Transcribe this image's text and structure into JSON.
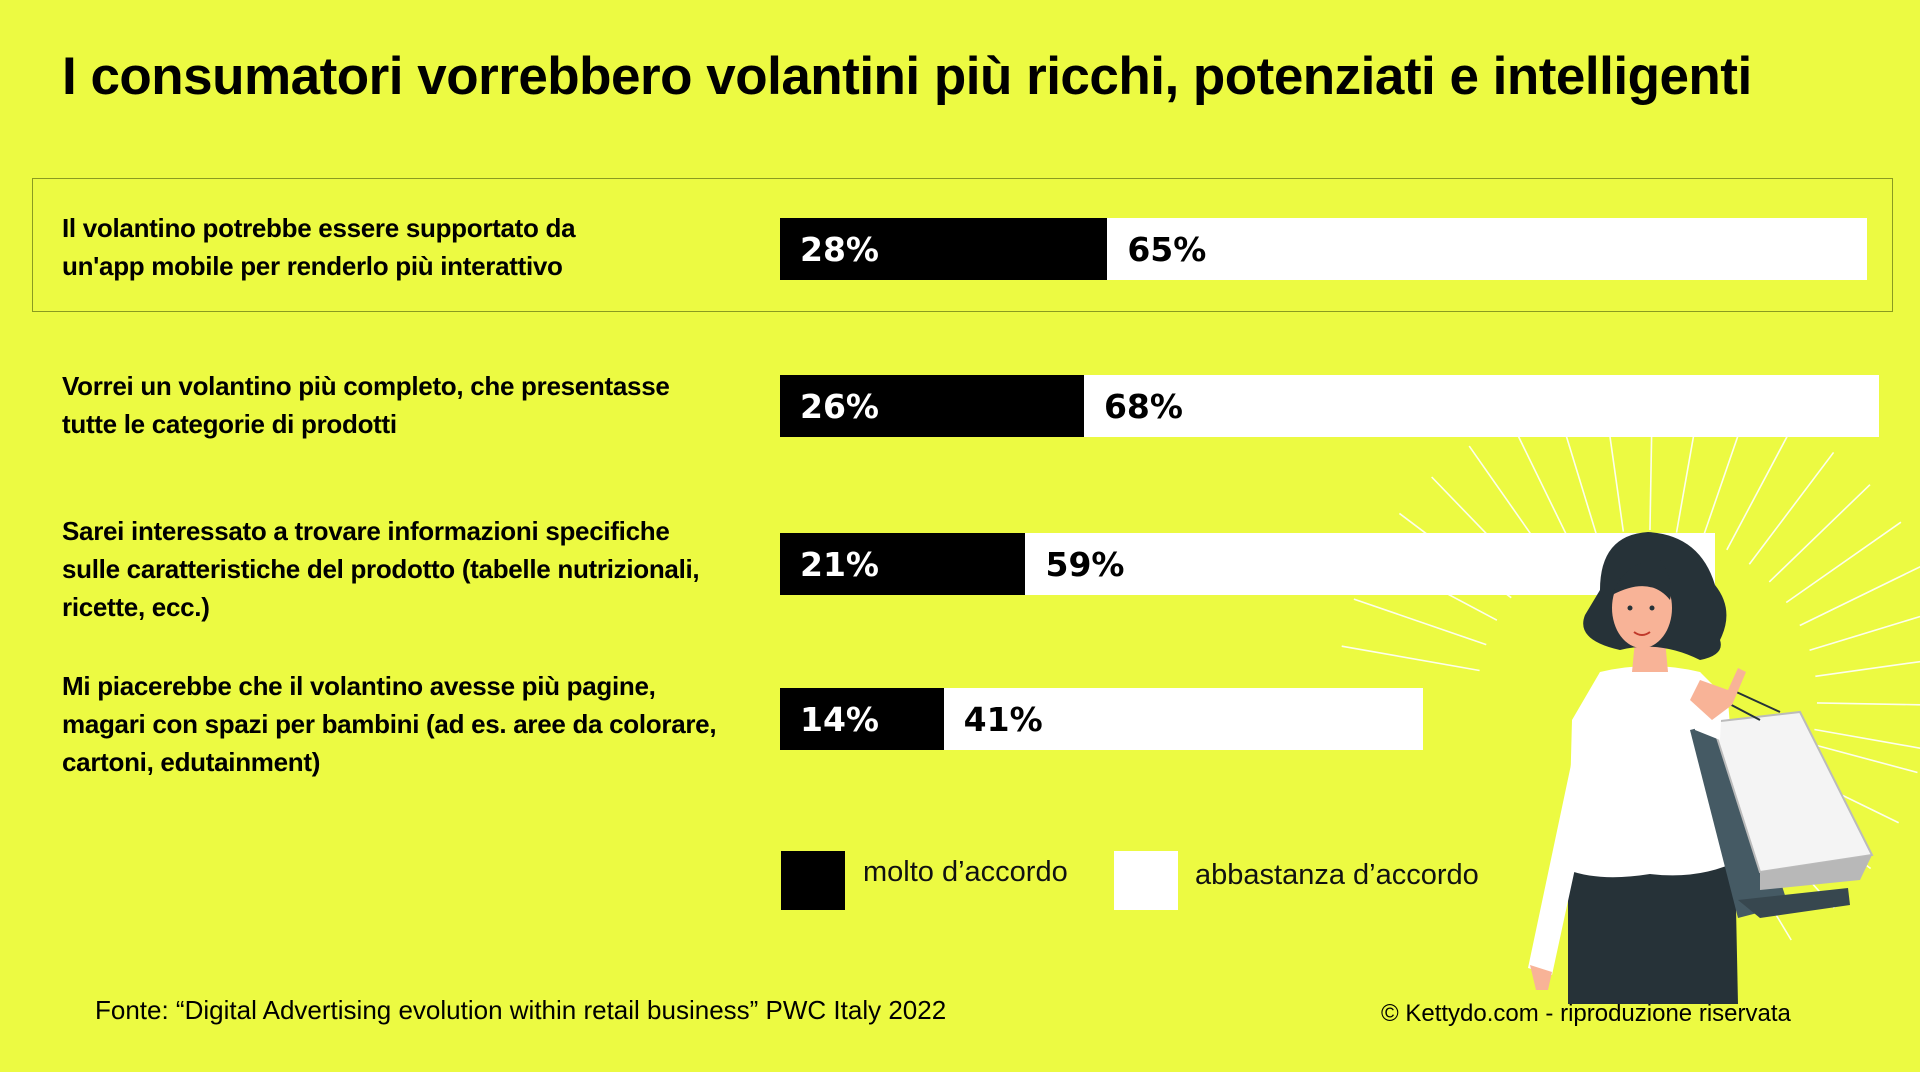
{
  "title": "I consumatori vorrebbero volantini più ricchi, potenziati e intelligenti",
  "colors": {
    "background": "#ECFA42",
    "molto": "#000000",
    "abbastanza": "#FFFFFF"
  },
  "chart_data": {
    "type": "bar",
    "stacked": true,
    "orientation": "horizontal",
    "title": "I consumatori vorrebbero volantini più ricchi, potenziati e intelligenti",
    "unit": "%",
    "categories": [
      "Il volantino potrebbe essere supportato da un'app mobile per renderlo più interattivo",
      "Vorrei un volantino più completo, che presentasse tutte le categorie di prodotti",
      "Sarei interessato a trovare informazioni specifiche sulle caratteristiche del prodotto (tabelle nutrizionali, ricette, ecc.)",
      "Mi piacerebbe che il volantino avesse più pagine, magari con spazi per bambini  (ad es. aree da colorare, cartoni, edutainment)"
    ],
    "category_lines": [
      [
        "Il volantino potrebbe essere supportato da",
        "un'app mobile per renderlo più interattivo"
      ],
      [
        "Vorrei un volantino più completo, che presentasse",
        "tutte le categorie di prodotti"
      ],
      [
        "Sarei interessato a trovare informazioni specifiche",
        "sulle caratteristiche del prodotto (tabelle nutrizionali,",
        "ricette, ecc.)"
      ],
      [
        "Mi piacerebbe che il volantino avesse più pagine,",
        "magari con spazi per bambini  (ad es. aree da colorare,",
        "cartoni, edutainment)"
      ]
    ],
    "series": [
      {
        "name": "molto d’accordo",
        "values": [
          28,
          26,
          21,
          14
        ],
        "labels": [
          "28%",
          "26%",
          "21%",
          "14%"
        ]
      },
      {
        "name": "abbastanza d’accordo",
        "values": [
          65,
          68,
          59,
          41
        ],
        "labels": [
          "65%",
          "68%",
          "59%",
          "41%"
        ]
      }
    ],
    "highlighted_category": 0,
    "legend_position": "bottom"
  },
  "legend": {
    "molto": "molto d’accordo",
    "abbastanza": "abbastanza d’accordo"
  },
  "footer": {
    "source": "Fonte: “Digital Advertising evolution  within retail business”  PWC Italy 2022",
    "copyright": "© Kettydo.com - riproduzione riservata"
  }
}
